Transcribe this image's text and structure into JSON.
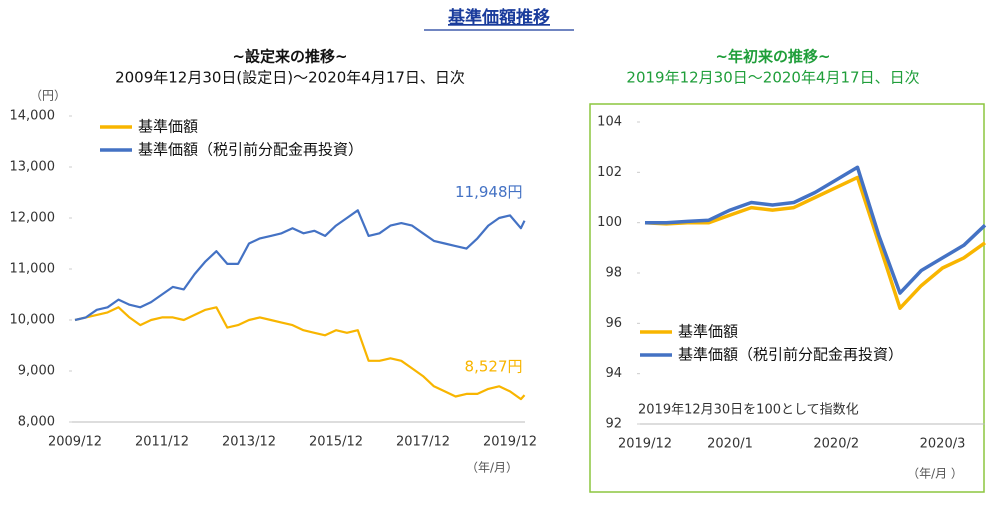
{
  "title": "基準価額推移",
  "chart_data": [
    {
      "type": "line",
      "title": "~設定来の推移~",
      "subtitle": "2009年12月30日(設定日)～2020年4月17日、日次",
      "y_unit": "（円）",
      "x_unit": "（年/月）",
      "x": [
        "2009/12",
        "2010/03",
        "2010/06",
        "2010/09",
        "2010/12",
        "2011/03",
        "2011/06",
        "2011/09",
        "2011/12",
        "2012/03",
        "2012/06",
        "2012/09",
        "2012/12",
        "2013/03",
        "2013/06",
        "2013/09",
        "2013/12",
        "2014/03",
        "2014/06",
        "2014/09",
        "2014/12",
        "2015/03",
        "2015/06",
        "2015/09",
        "2015/12",
        "2016/03",
        "2016/06",
        "2016/09",
        "2016/12",
        "2017/03",
        "2017/06",
        "2017/09",
        "2017/12",
        "2018/03",
        "2018/06",
        "2018/09",
        "2018/12",
        "2019/03",
        "2019/06",
        "2019/09",
        "2019/12",
        "2020/03",
        "2020/04"
      ],
      "xlim": [
        "2009/12",
        "2020/04"
      ],
      "xticks": [
        "2009/12",
        "2011/12",
        "2013/12",
        "2015/12",
        "2017/12",
        "2019/12"
      ],
      "ylim": [
        8000,
        14000
      ],
      "yticks": [
        {
          "value": 8000,
          "label": "8,000"
        },
        {
          "value": 9000,
          "label": "9,000"
        },
        {
          "value": 10000,
          "label": "10,000"
        },
        {
          "value": 11000,
          "label": "11,000"
        },
        {
          "value": 12000,
          "label": "12,000"
        },
        {
          "value": 13000,
          "label": "13,000"
        },
        {
          "value": 14000,
          "label": "14,000"
        }
      ],
      "series": [
        {
          "name": "基準価額",
          "color": "#f8b500",
          "values": [
            10000,
            10050,
            10100,
            10150,
            10250,
            10050,
            9900,
            10000,
            10050,
            10050,
            10000,
            10100,
            10200,
            10250,
            9850,
            9900,
            10000,
            10050,
            10000,
            9950,
            9900,
            9800,
            9750,
            9700,
            9800,
            9750,
            9800,
            9200,
            9200,
            9250,
            9200,
            9050,
            8900,
            8700,
            8600,
            8500,
            8550,
            8550,
            8650,
            8700,
            8600,
            8450,
            8527
          ],
          "value_labels": [
            null,
            null,
            null,
            null,
            null,
            null,
            null,
            null,
            null,
            null,
            null,
            null,
            null,
            null,
            null,
            null,
            null,
            null,
            null,
            null,
            null,
            null,
            null,
            null,
            null,
            null,
            null,
            null,
            null,
            null,
            null,
            null,
            null,
            null,
            null,
            null,
            null,
            null,
            null,
            null,
            null,
            null,
            "8,527円"
          ]
        },
        {
          "name": "基準価額（税引前分配金再投資）",
          "color": "#4472c4",
          "values": [
            10000,
            10050,
            10200,
            10250,
            10400,
            10300,
            10250,
            10350,
            10500,
            10650,
            10600,
            10900,
            11150,
            11350,
            11100,
            11100,
            11500,
            11600,
            11650,
            11700,
            11800,
            11700,
            11750,
            11650,
            11850,
            12000,
            12150,
            11650,
            11700,
            11850,
            11900,
            11850,
            11700,
            11550,
            11500,
            11450,
            11400,
            11600,
            11850,
            12000,
            12050,
            11800,
            11948
          ],
          "value_labels": [
            null,
            null,
            null,
            null,
            null,
            null,
            null,
            null,
            null,
            null,
            null,
            null,
            null,
            null,
            null,
            null,
            null,
            null,
            null,
            null,
            null,
            null,
            null,
            null,
            null,
            null,
            null,
            null,
            null,
            null,
            null,
            null,
            null,
            null,
            null,
            null,
            null,
            null,
            null,
            null,
            null,
            null,
            "11,948円"
          ]
        }
      ]
    },
    {
      "type": "line",
      "title": "~年初来の推移~",
      "subtitle": "2019年12月30日～2020年4月17日、日次",
      "note": "2019年12月30日を100として指数化",
      "x_unit": "（年/月 ）",
      "categories": [
        "2019/12",
        null,
        null,
        null,
        "2020/1",
        null,
        null,
        null,
        null,
        "2020/2",
        null,
        null,
        null,
        null,
        "2020/3",
        null,
        null
      ],
      "ylim": [
        92,
        104
      ],
      "yticks": [
        92,
        94,
        96,
        98,
        100,
        102,
        104
      ],
      "series": [
        {
          "name": "基準価額",
          "color": "#f8b500",
          "values": [
            100.0,
            99.95,
            100.0,
            100.0,
            100.3,
            100.6,
            100.5,
            100.6,
            101.0,
            101.4,
            101.8,
            99.2,
            96.6,
            97.5,
            98.2,
            98.6,
            99.2
          ]
        },
        {
          "name": "基準価額（税引前分配金再投資）",
          "color": "#4472c4",
          "values": [
            100.0,
            100.0,
            100.05,
            100.1,
            100.5,
            100.8,
            100.7,
            100.8,
            101.2,
            101.7,
            102.2,
            99.5,
            97.2,
            98.1,
            98.6,
            99.1,
            99.9
          ]
        }
      ]
    }
  ]
}
